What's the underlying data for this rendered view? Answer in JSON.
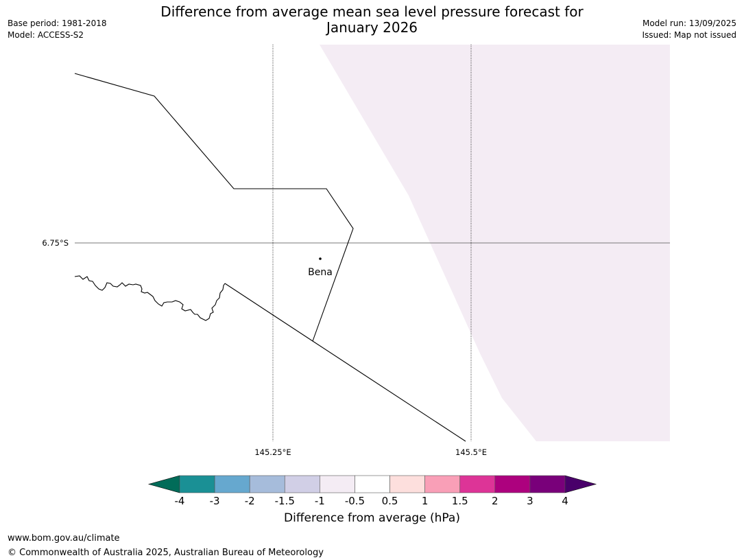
{
  "header": {
    "title_line1": "Difference from average mean sea level pressure forecast for",
    "title_line2": "January 2026",
    "base_period": "Base period: 1981-2018",
    "model": "Model: ACCESS-S2",
    "model_run": "Model run: 13/09/2025",
    "issued": "Issued: Map not issued"
  },
  "map": {
    "place_label": "Bena",
    "lat_label": "6.75°S",
    "lon_labels": [
      "145.25°E",
      "145.5°E"
    ],
    "fill_color": "#f4ecf4"
  },
  "colorbar": {
    "label": "Difference from average (hPa)",
    "ticks": [
      "-4",
      "-3",
      "-2",
      "-1.5",
      "-1",
      "-0.5",
      "0.5",
      "1",
      "1.5",
      "2",
      "3",
      "4"
    ],
    "colors": [
      "#1a9095",
      "#66a8cf",
      "#a6bcdb",
      "#d1cfe6",
      "#f4ecf4",
      "#ffffff",
      "#fddfdd",
      "#f99fb7",
      "#dd3497",
      "#ad017e",
      "#79007a"
    ],
    "extend_low_color": "#016c59",
    "extend_high_color": "#49006a"
  },
  "footer": {
    "url": "www.bom.gov.au/climate",
    "copyright": "© Commonwealth of Australia 2025, Australian Bureau of Meteorology"
  }
}
